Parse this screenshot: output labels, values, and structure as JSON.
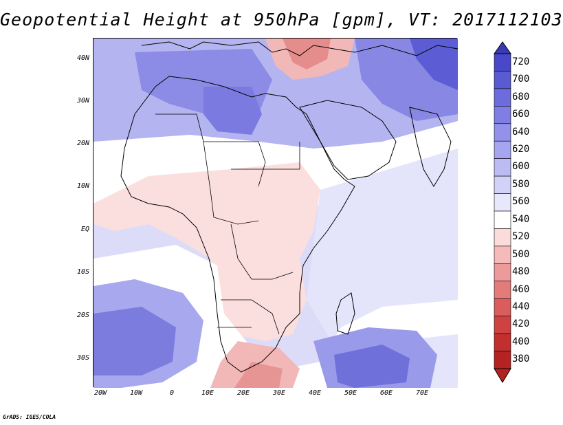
{
  "title": "Geopotential Height at 950hPa [gpm], VT: 2017112103",
  "lat_labels": [
    "40N",
    "30N",
    "20N",
    "10N",
    "EQ",
    "10S",
    "20S",
    "30S"
  ],
  "lon_labels": [
    "20W",
    "10W",
    "0",
    "10E",
    "20E",
    "30E",
    "40E",
    "50E",
    "60E",
    "70E"
  ],
  "colorbar": {
    "levels": [
      "720",
      "700",
      "680",
      "660",
      "640",
      "620",
      "600",
      "580",
      "560",
      "540",
      "520",
      "500",
      "480",
      "460",
      "440",
      "420",
      "400",
      "380"
    ],
    "colors": [
      "#4848c8",
      "#5a5ad2",
      "#6c6cdc",
      "#7e7ee4",
      "#9292ea",
      "#a6a6f0",
      "#bcbcf5",
      "#d2d2f9",
      "#e8e8fc",
      "#ffffff",
      "#fbdcdc",
      "#f5baba",
      "#ec9a9a",
      "#e37b7b",
      "#da5c5c",
      "#cf4242",
      "#c22f2f",
      "#b42222"
    ]
  },
  "footer": "GrADS: IGES/COLA"
}
